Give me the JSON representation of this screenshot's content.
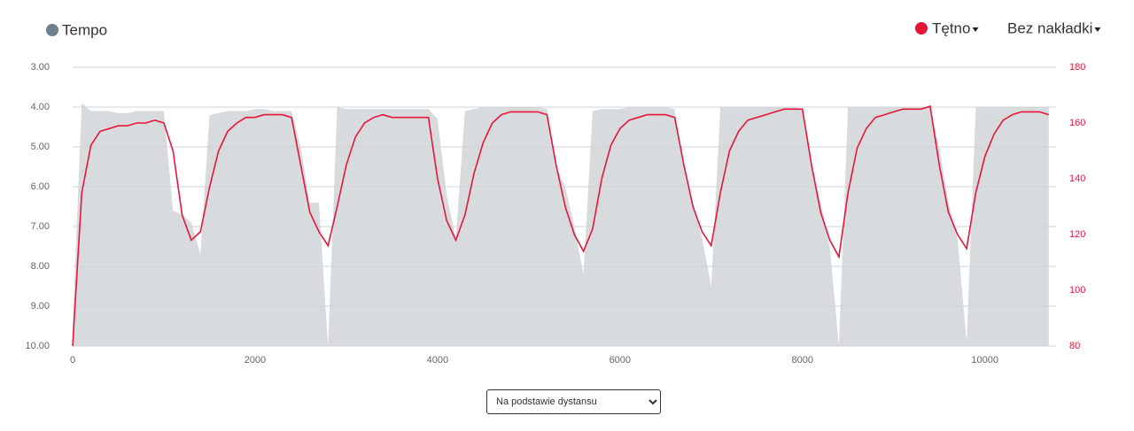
{
  "chart_data": {
    "type": "line",
    "x": [
      0,
      100,
      200,
      300,
      400,
      500,
      600,
      700,
      800,
      900,
      1000,
      1100,
      1200,
      1300,
      1400,
      1500,
      1600,
      1700,
      1800,
      1900,
      2000,
      2100,
      2200,
      2300,
      2400,
      2500,
      2600,
      2700,
      2800,
      2900,
      3000,
      3100,
      3200,
      3300,
      3400,
      3500,
      3600,
      3700,
      3800,
      3900,
      4000,
      4100,
      4200,
      4300,
      4400,
      4500,
      4600,
      4700,
      4800,
      4900,
      5000,
      5100,
      5200,
      5300,
      5400,
      5500,
      5600,
      5700,
      5800,
      5900,
      6000,
      6100,
      6200,
      6300,
      6400,
      6500,
      6600,
      6700,
      6800,
      6900,
      7000,
      7100,
      7200,
      7300,
      7400,
      7500,
      7600,
      7700,
      7800,
      7900,
      8000,
      8100,
      8200,
      8300,
      8400,
      8500,
      8600,
      8700,
      8800,
      8900,
      9000,
      9100,
      9200,
      9300,
      9400,
      9500,
      9600,
      9700,
      9800,
      9900,
      10000,
      10100,
      10200,
      10300,
      10400,
      10500,
      10600,
      10700
    ],
    "series": [
      {
        "name": "Tempo",
        "color": "#d7dbde",
        "marker_color": "#6e7f8d",
        "fill": true,
        "values": [
          9.5,
          3.9,
          4.1,
          4.1,
          4.1,
          4.15,
          4.15,
          4.1,
          4.1,
          4.1,
          4.1,
          6.6,
          6.7,
          6.9,
          7.7,
          4.2,
          4.15,
          4.1,
          4.1,
          4.1,
          4.05,
          4.05,
          4.1,
          4.1,
          4.1,
          5.0,
          6.4,
          6.4,
          10,
          4.0,
          4.05,
          4.05,
          4.05,
          4.05,
          4.05,
          4.05,
          4.05,
          4.05,
          4.05,
          4.05,
          4.3,
          6.2,
          7.3,
          4.1,
          4.05,
          4.0,
          4.0,
          4.0,
          4.0,
          4.0,
          4.0,
          4.0,
          4.05,
          5.5,
          6.0,
          7.0,
          8.2,
          4.1,
          4.05,
          4.05,
          4.05,
          4.0,
          4.0,
          4.0,
          4.0,
          4.0,
          4.05,
          5.5,
          6.4,
          7.3,
          8.5,
          4.0,
          4.0,
          4.0,
          4.0,
          4.0,
          4.0,
          4.0,
          4.0,
          4.0,
          4.05,
          5.5,
          6.4,
          7.5,
          10,
          4.0,
          4.0,
          4.0,
          4.0,
          4.0,
          4.0,
          4.0,
          4.0,
          4.0,
          4.0,
          5.0,
          6.4,
          7.3,
          9.9,
          4.0,
          4.0,
          4.0,
          4.0,
          4.0,
          4.0,
          4.0,
          4.0,
          4.0
        ]
      },
      {
        "name": "Tętno",
        "color": "#e8153a",
        "axis": "y2",
        "values": [
          80,
          135,
          152,
          157,
          158,
          159,
          159,
          160,
          160,
          161,
          160,
          150,
          127,
          118,
          121,
          137,
          150,
          157,
          160,
          162,
          162,
          163,
          163,
          163,
          162,
          145,
          128,
          121,
          116,
          130,
          145,
          155,
          160,
          162,
          163,
          162,
          162,
          162,
          162,
          162,
          140,
          125,
          118,
          127,
          142,
          153,
          160,
          163,
          164,
          164,
          164,
          164,
          163,
          145,
          130,
          120,
          114,
          122,
          140,
          152,
          158,
          161,
          162,
          163,
          163,
          163,
          162,
          145,
          130,
          121,
          116,
          135,
          150,
          157,
          161,
          162,
          163,
          164,
          165,
          165,
          165,
          145,
          128,
          118,
          112,
          135,
          151,
          158,
          162,
          163,
          164,
          165,
          165,
          165,
          166,
          145,
          128,
          120,
          115,
          135,
          148,
          156,
          161,
          163,
          164,
          164,
          164,
          163
        ]
      }
    ],
    "xlim": [
      0,
      10780
    ],
    "xticks": [
      0,
      2000,
      4000,
      6000,
      8000,
      10000
    ],
    "ylim": [
      10,
      3
    ],
    "yticks": [
      {
        "value": 10,
        "label": "10.00"
      },
      {
        "value": 9,
        "label": "9.00"
      },
      {
        "value": 8,
        "label": "8.00"
      },
      {
        "value": 7,
        "label": "7.00"
      },
      {
        "value": 6,
        "label": "6.00"
      },
      {
        "value": 5,
        "label": "5.00"
      },
      {
        "value": 4,
        "label": "4.00"
      },
      {
        "value": 3,
        "label": "3.00"
      }
    ],
    "y2lim": [
      80,
      180
    ],
    "y2ticks": [
      80,
      100,
      120,
      140,
      160,
      180
    ],
    "grid": true
  },
  "controls": {
    "overlay": "Bez nakładki",
    "basis": "Na podstawie dystansu"
  }
}
